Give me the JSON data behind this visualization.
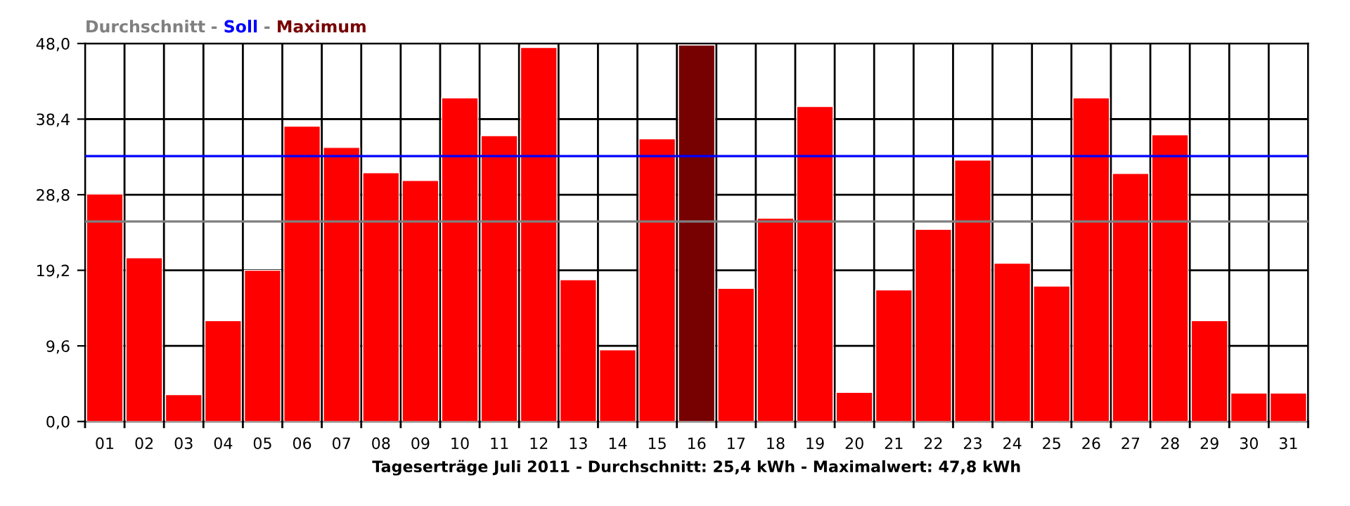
{
  "chart_data": {
    "type": "bar",
    "title": "Durchschnitt - Soll - Maximum",
    "xlabel": "Tageserträge Juli 2011 - Durchschnitt: 25,4 kWh - Maximalwert: 47,8 kWh",
    "categories": [
      "01",
      "02",
      "03",
      "04",
      "05",
      "06",
      "07",
      "08",
      "09",
      "10",
      "11",
      "12",
      "13",
      "14",
      "15",
      "16",
      "17",
      "18",
      "19",
      "20",
      "21",
      "22",
      "23",
      "24",
      "25",
      "26",
      "27",
      "28",
      "29",
      "30",
      "31"
    ],
    "values": [
      28.9,
      20.8,
      3.4,
      12.8,
      19.2,
      37.5,
      34.8,
      31.6,
      30.6,
      41.1,
      36.3,
      47.5,
      18.0,
      9.1,
      35.9,
      47.8,
      16.9,
      25.8,
      40.0,
      3.7,
      16.7,
      24.4,
      33.2,
      20.1,
      17.2,
      41.1,
      31.5,
      36.4,
      12.8,
      3.6,
      3.6
    ],
    "colors": [
      "#ff0000",
      "#ff0000",
      "#ff0000",
      "#ff0000",
      "#ff0000",
      "#ff0000",
      "#ff0000",
      "#ff0000",
      "#ff0000",
      "#ff0000",
      "#ff0000",
      "#ff0000",
      "#ff0000",
      "#ff0000",
      "#ff0000",
      "#770000",
      "#ff0000",
      "#ff0000",
      "#ff0000",
      "#ff0000",
      "#ff0000",
      "#ff0000",
      "#ff0000",
      "#ff0000",
      "#ff0000",
      "#ff0000",
      "#ff0000",
      "#ff0000",
      "#ff0000",
      "#ff0000",
      "#ff0000"
    ],
    "ylim": [
      0,
      48
    ],
    "yticks": [
      {
        "value": 0,
        "label": "0,0"
      },
      {
        "value": 9.6,
        "label": "9,6"
      },
      {
        "value": 19.2,
        "label": "19,2"
      },
      {
        "value": 28.8,
        "label": "28,8"
      },
      {
        "value": 38.4,
        "label": "38,4"
      },
      {
        "value": 48,
        "label": "48,0"
      }
    ],
    "ref_lines": [
      {
        "axis": "y",
        "value": 25.4,
        "color": "#808080"
      },
      {
        "axis": "y",
        "value": 33.7,
        "color": "#0000ff"
      }
    ],
    "grid": true
  }
}
